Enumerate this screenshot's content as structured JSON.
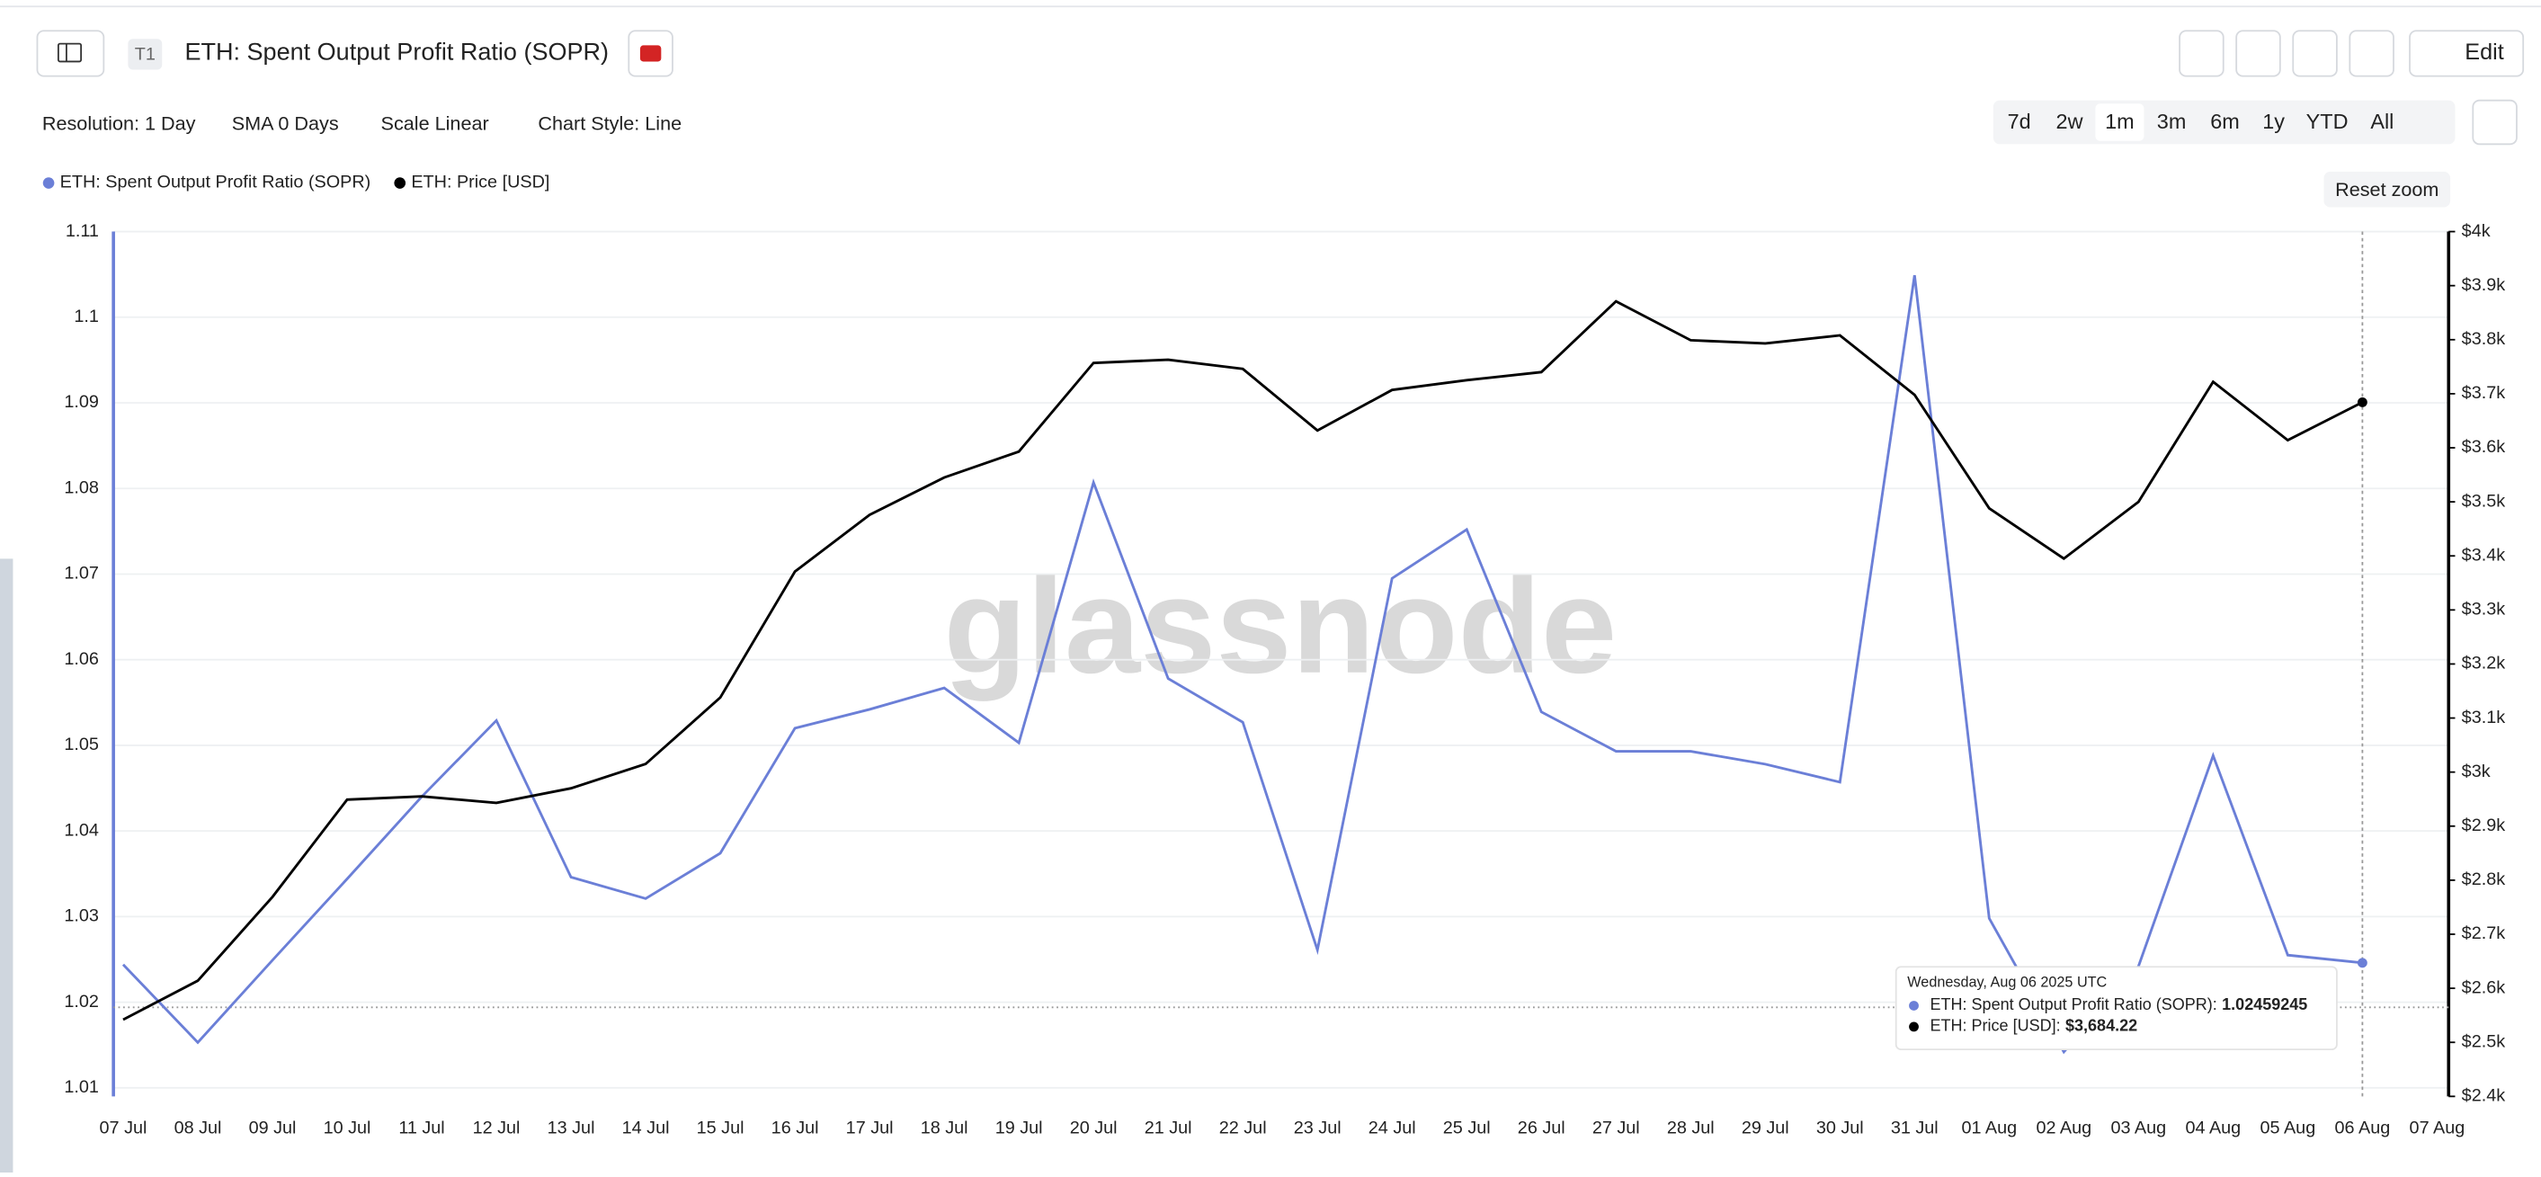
{
  "header": {
    "badge": "T1",
    "title": "ETH: Spent Output Profit Ratio (SOPR)",
    "edit": "Edit"
  },
  "controls": {
    "resolution": "Resolution: 1 Day",
    "sma": "SMA 0 Days",
    "scale": "Scale Linear",
    "style": "Chart Style: Line",
    "ranges": [
      "7d",
      "2w",
      "1m",
      "3m",
      "6m",
      "1y",
      "YTD",
      "All"
    ],
    "reset_zoom": "Reset zoom"
  },
  "chart_data": {
    "type": "line",
    "watermark": "glassnode",
    "grid": true,
    "categories": [
      "07 Jul",
      "08 Jul",
      "09 Jul",
      "10 Jul",
      "11 Jul",
      "12 Jul",
      "13 Jul",
      "14 Jul",
      "15 Jul",
      "16 Jul",
      "17 Jul",
      "18 Jul",
      "19 Jul",
      "20 Jul",
      "21 Jul",
      "22 Jul",
      "23 Jul",
      "24 Jul",
      "25 Jul",
      "26 Jul",
      "27 Jul",
      "28 Jul",
      "29 Jul",
      "30 Jul",
      "31 Jul",
      "01 Aug",
      "02 Aug",
      "03 Aug",
      "04 Aug",
      "05 Aug",
      "06 Aug",
      "07 Aug"
    ],
    "ylim": [
      1.009,
      1.11
    ],
    "yticks": [
      1.01,
      1.02,
      1.03,
      1.04,
      1.05,
      1.06,
      1.07,
      1.08,
      1.09,
      1.1,
      1.11
    ],
    "y2lim": [
      2400,
      4000
    ],
    "y2ticks": [
      {
        "value": 2400,
        "label": "$2.4k"
      },
      {
        "value": 2500,
        "label": "$2.5k"
      },
      {
        "value": 2600,
        "label": "$2.6k"
      },
      {
        "value": 2700,
        "label": "$2.7k"
      },
      {
        "value": 2800,
        "label": "$2.8k"
      },
      {
        "value": 2900,
        "label": "$2.9k"
      },
      {
        "value": 3000,
        "label": "$3k"
      },
      {
        "value": 3100,
        "label": "$3.1k"
      },
      {
        "value": 3200,
        "label": "$3.2k"
      },
      {
        "value": 3300,
        "label": "$3.3k"
      },
      {
        "value": 3400,
        "label": "$3.4k"
      },
      {
        "value": 3500,
        "label": "$3.5k"
      },
      {
        "value": 3600,
        "label": "$3.6k"
      },
      {
        "value": 3700,
        "label": "$3.7k"
      },
      {
        "value": 3800,
        "label": "$3.8k"
      },
      {
        "value": 3900,
        "label": "$3.9k"
      },
      {
        "value": 4000,
        "label": "$4k"
      }
    ],
    "series": [
      {
        "name": "ETH: Spent Output Profit Ratio (SOPR)",
        "color": "#6b7fd7",
        "values": [
          1.0244,
          1.0153,
          1.0249,
          1.0344,
          1.044,
          1.0529,
          1.0346,
          1.0321,
          1.0374,
          1.052,
          1.0542,
          1.0567,
          1.0503,
          1.0807,
          1.0578,
          1.0527,
          1.0261,
          1.0695,
          1.0752,
          1.0539,
          1.0493,
          1.0493,
          1.0478,
          1.0457,
          1.1049,
          1.0298,
          1.0142,
          1.0242,
          1.0488,
          1.0255,
          1.02459245,
          null
        ]
      },
      {
        "name": "ETH: Price [USD]",
        "color": "#000000",
        "axis": "y2",
        "values": [
          2542,
          2614,
          2769,
          2949,
          2955,
          2943,
          2970,
          3015,
          3138,
          3371,
          3476,
          3545,
          3593,
          3757,
          3763,
          3746,
          3632,
          3707,
          3725,
          3740,
          3871,
          3799,
          3793,
          3808,
          3698,
          3488,
          3395,
          3500,
          3722,
          3614,
          3684.22,
          null
        ]
      }
    ],
    "tooltip": {
      "date": "Wednesday, Aug 06 2025 UTC",
      "rows": [
        {
          "label": "ETH: Spent Output Profit Ratio (SOPR):",
          "value": "1.02459245"
        },
        {
          "label": "ETH: Price [USD]:",
          "value": "$3,684.22"
        }
      ]
    }
  }
}
